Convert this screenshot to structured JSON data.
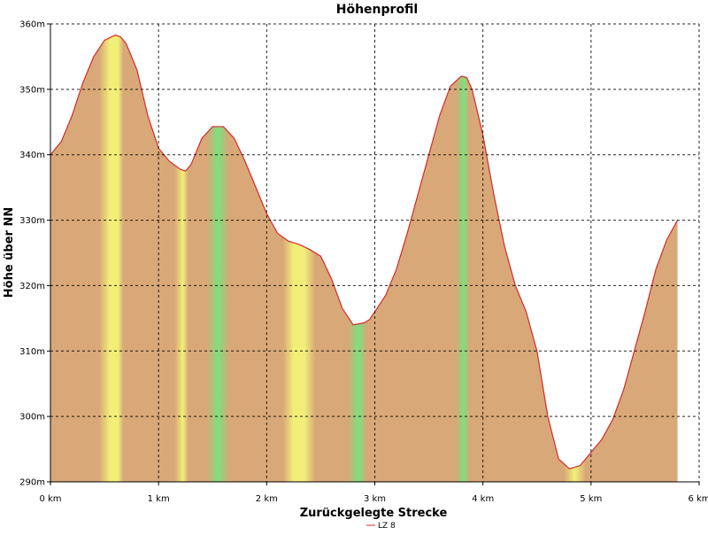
{
  "chart_data": {
    "type": "area",
    "title": "Höhenprofil",
    "xlabel": "Zurückgelegte Strecke",
    "ylabel": "Höhe über NN",
    "xlim": [
      0,
      6
    ],
    "ylim": [
      290,
      360
    ],
    "x_ticks": [
      0,
      1,
      2,
      3,
      4,
      5,
      6
    ],
    "x_tick_labels": [
      "0 km",
      "1 km",
      "2 km",
      "3 km",
      "4 km",
      "5 km",
      "6 km"
    ],
    "y_ticks": [
      290,
      300,
      310,
      320,
      330,
      340,
      350,
      360
    ],
    "y_tick_labels": [
      "290m",
      "300m",
      "310m",
      "320m",
      "330m",
      "340m",
      "350m",
      "360m"
    ],
    "grid": true,
    "legend_position": "bottom-center",
    "colors": {
      "line": "#d42b2b",
      "flat": "#7de07d",
      "moderate": "#f2ef78",
      "steep": "#d8a878"
    },
    "series": [
      {
        "name": "LZ 8",
        "x": [
          0,
          0.1,
          0.2,
          0.3,
          0.4,
          0.5,
          0.6,
          0.65,
          0.7,
          0.8,
          0.9,
          1.0,
          1.1,
          1.2,
          1.25,
          1.3,
          1.4,
          1.5,
          1.6,
          1.7,
          1.8,
          1.9,
          2.0,
          2.1,
          2.2,
          2.3,
          2.4,
          2.5,
          2.6,
          2.7,
          2.8,
          2.9,
          2.95,
          3.0,
          3.1,
          3.2,
          3.3,
          3.4,
          3.5,
          3.6,
          3.7,
          3.8,
          3.85,
          3.9,
          4.0,
          4.1,
          4.2,
          4.3,
          4.4,
          4.5,
          4.6,
          4.7,
          4.8,
          4.9,
          5.0,
          5.1,
          5.2,
          5.3,
          5.4,
          5.5,
          5.6,
          5.7,
          5.8
        ],
        "y": [
          340,
          342,
          346,
          351,
          355,
          357.5,
          358.3,
          358,
          357,
          353,
          346,
          341,
          339,
          337.8,
          337.5,
          338.5,
          342.5,
          344.3,
          344.3,
          342.5,
          339,
          335,
          331,
          328,
          326.8,
          326.3,
          325.5,
          324.5,
          321,
          316.5,
          314,
          314.3,
          314.8,
          316,
          318.5,
          322.5,
          328,
          334,
          340,
          346,
          350.5,
          352,
          351.8,
          350,
          343,
          334,
          326,
          320,
          316,
          310,
          300,
          293.5,
          292,
          292.5,
          294.5,
          296.5,
          299.5,
          304,
          310,
          316,
          322.5,
          327,
          330
        ]
      }
    ]
  }
}
